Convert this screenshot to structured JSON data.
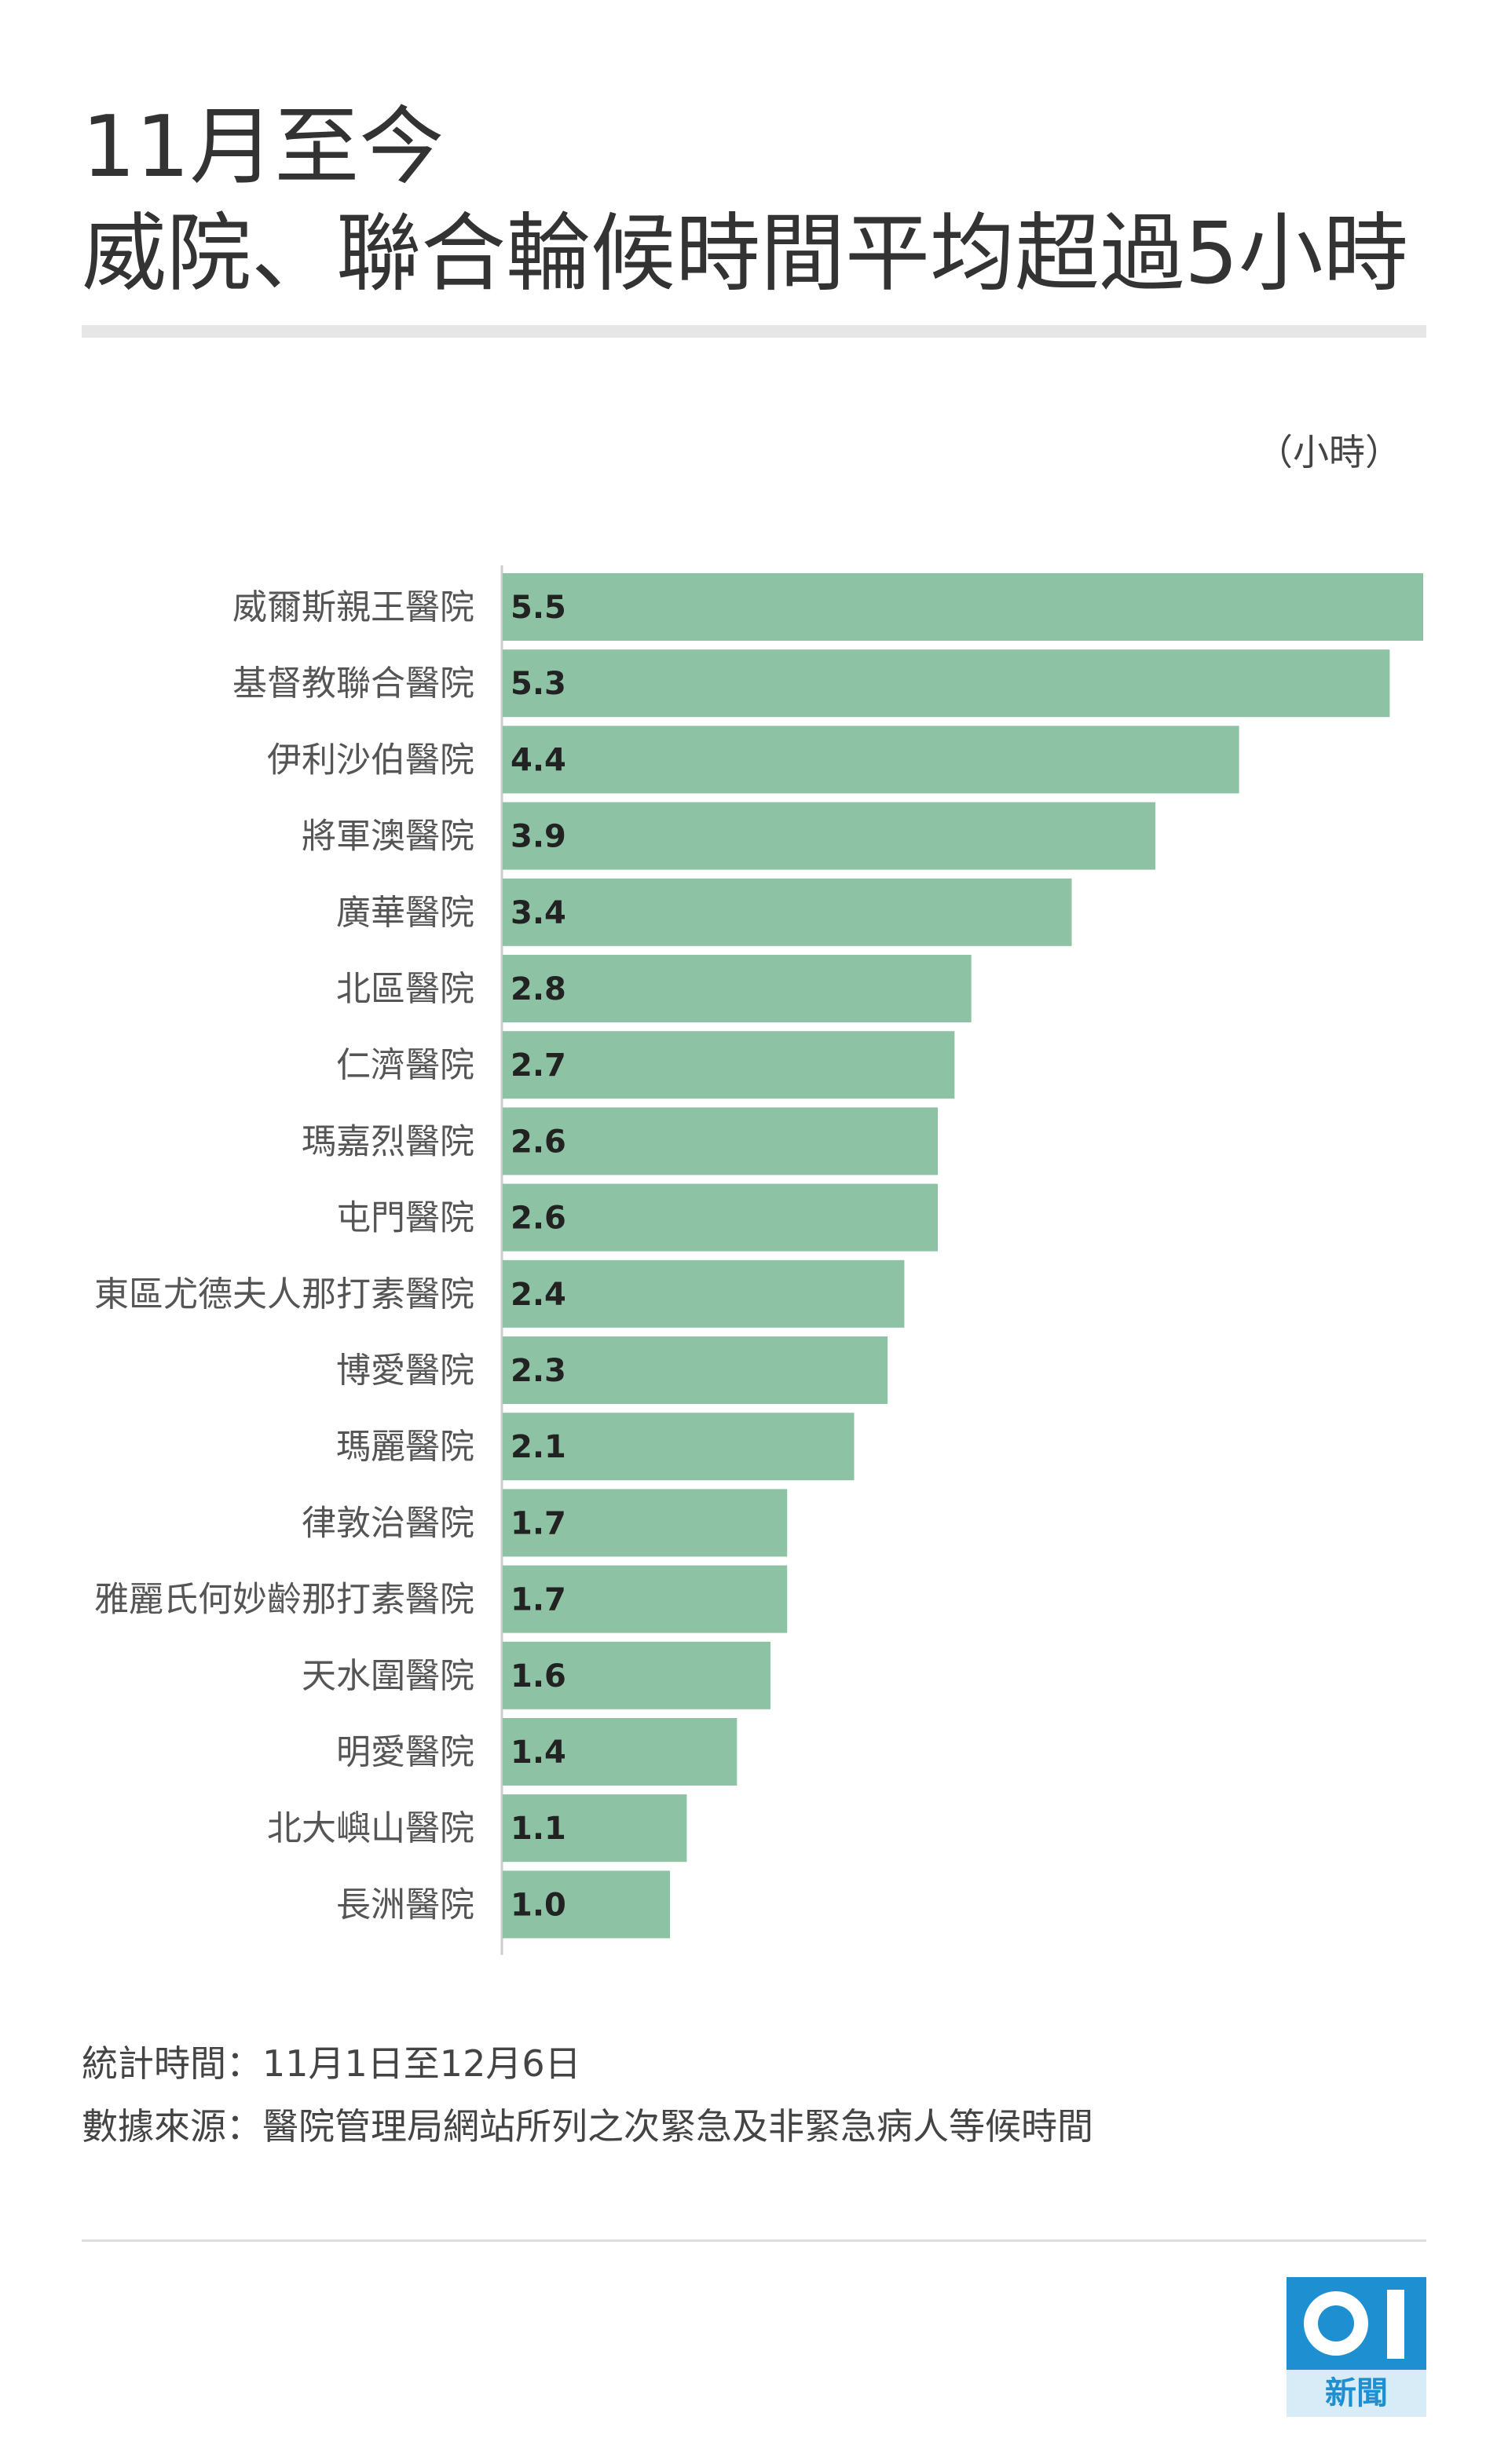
{
  "title": {
    "line1": "11月至今",
    "line2": "威院、聯合輪候時間平均超過5小時"
  },
  "unit_label": "（小時）",
  "footnotes": {
    "period": "統計時間：11月1日至12月6日",
    "source": "數據來源：醫院管理局網站所列之次緊急及非緊急病人等候時間"
  },
  "logo": {
    "icon": "hk01-logo-icon",
    "text": "新聞"
  },
  "colors": {
    "bar": "#8dc3a4",
    "axis": "#cccccc",
    "logo": "#1e8fd0"
  },
  "chart_data": {
    "type": "bar",
    "orientation": "horizontal",
    "title": "威院、聯合輪候時間平均超過5小時",
    "unit": "小時",
    "xlim": [
      0,
      5.5
    ],
    "grid": false,
    "categories": [
      "威爾斯親王醫院",
      "基督教聯合醫院",
      "伊利沙伯醫院",
      "將軍澳醫院",
      "廣華醫院",
      "北區醫院",
      "仁濟醫院",
      "瑪嘉烈醫院",
      "屯門醫院",
      "東區尤德夫人那打素醫院",
      "博愛醫院",
      "瑪麗醫院",
      "律敦治醫院",
      "雅麗氏何妙齡那打素醫院",
      "天水圍醫院",
      "明愛醫院",
      "北大嶼山醫院",
      "長洲醫院"
    ],
    "values": [
      5.5,
      5.3,
      4.4,
      3.9,
      3.4,
      2.8,
      2.7,
      2.6,
      2.6,
      2.4,
      2.3,
      2.1,
      1.7,
      1.7,
      1.6,
      1.4,
      1.1,
      1.0
    ],
    "value_labels": [
      "5.5",
      "5.3",
      "4.4",
      "3.9",
      "3.4",
      "2.8",
      "2.7",
      "2.6",
      "2.6",
      "2.4",
      "2.3",
      "2.1",
      "1.7",
      "1.7",
      "1.6",
      "1.4",
      "1.1",
      "1.0"
    ]
  }
}
